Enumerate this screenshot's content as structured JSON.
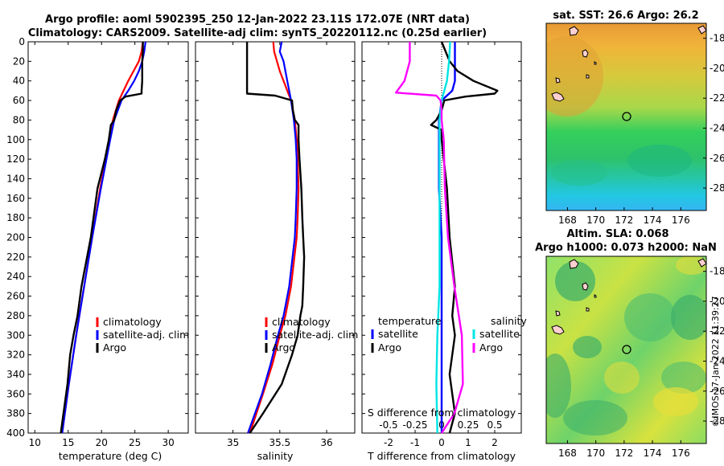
{
  "title_line1": "Argo profile: aoml 5902395_250 12-Jan-2022 23.11S 172.07E (NRT data)",
  "title_line2": "Climatology: CARS2009. Satellite-adj clim: synTS_20220112.nc (0.25d earlier)",
  "sst_title": "sat. SST: 26.6 Argo: 26.2",
  "sla_title1": "Altim. SLA: 0.068",
  "sla_title2": "Argo h1000: 0.073 h2000: NaN",
  "watermark": "©IMOS 17-Jan-2022 11:39:27",
  "colors": {
    "climatology": "#ff0000",
    "satellite": "#0000ff",
    "argo": "#000000",
    "sal_sat": "#00e5e5",
    "sal_argo": "#ff00ff"
  },
  "chart_data": [
    {
      "type": "line",
      "name": "temperature-profile",
      "xlabel": "temperature (deg C)",
      "xlim": [
        9,
        33
      ],
      "xticks": [
        "10",
        "15",
        "20",
        "25",
        "30"
      ],
      "ylim": [
        400,
        0
      ],
      "yticks": [
        "0",
        "20",
        "40",
        "60",
        "80",
        "100",
        "120",
        "140",
        "160",
        "180",
        "200",
        "220",
        "240",
        "260",
        "280",
        "300",
        "320",
        "340",
        "360",
        "380",
        "400"
      ],
      "legend": [
        "climatology",
        "satellite-adj. clim",
        "Argo"
      ],
      "series": [
        {
          "name": "climatology",
          "depth": [
            0,
            10,
            20,
            30,
            40,
            50,
            60,
            80,
            100,
            150,
            200,
            250,
            300,
            350,
            400
          ],
          "values": [
            26.2,
            26.0,
            25.6,
            24.8,
            24.0,
            23.3,
            22.6,
            21.7,
            21.2,
            19.8,
            18.6,
            17.4,
            16.2,
            15.1,
            14.1
          ]
        },
        {
          "name": "satellite-adj. clim",
          "depth": [
            0,
            10,
            20,
            30,
            40,
            50,
            60,
            80,
            100,
            150,
            200,
            250,
            300,
            350,
            400
          ],
          "values": [
            26.6,
            26.4,
            26.1,
            25.6,
            24.9,
            24.0,
            23.0,
            21.9,
            21.3,
            19.9,
            18.6,
            17.4,
            16.2,
            15.1,
            14.1
          ]
        },
        {
          "name": "Argo",
          "depth": [
            0,
            10,
            20,
            30,
            40,
            50,
            53,
            56,
            60,
            70,
            80,
            85,
            90,
            100,
            120,
            150,
            200,
            250,
            280,
            300,
            320,
            350,
            380,
            400
          ],
          "values": [
            26.2,
            26.2,
            26.1,
            26.1,
            26.1,
            26.0,
            26.0,
            23.6,
            22.8,
            22.2,
            21.9,
            21.4,
            21.3,
            21.1,
            20.5,
            19.4,
            18.4,
            17.0,
            16.4,
            15.8,
            15.3,
            14.9,
            14.3,
            13.9
          ]
        }
      ]
    },
    {
      "type": "line",
      "name": "salinity-profile",
      "xlabel": "salinity",
      "xticks": [
        "35",
        "35.5",
        "36"
      ],
      "xlim": [
        34.6,
        36.3
      ],
      "ylim": [
        400,
        0
      ],
      "legend": [
        "climatology",
        "satellite-adj. clim",
        "Argo"
      ],
      "series": [
        {
          "name": "climatology",
          "depth": [
            0,
            10,
            20,
            30,
            40,
            50,
            60,
            80,
            100,
            120,
            150,
            180,
            200,
            250,
            280,
            300,
            330,
            360,
            400
          ],
          "values": [
            35.43,
            35.44,
            35.47,
            35.5,
            35.54,
            35.58,
            35.62,
            35.66,
            35.68,
            35.69,
            35.7,
            35.69,
            35.68,
            35.62,
            35.56,
            35.5,
            35.42,
            35.32,
            35.18
          ]
        },
        {
          "name": "satellite-adj. clim",
          "depth": [
            0,
            10,
            20,
            30,
            40,
            50,
            60,
            80,
            100,
            120,
            150,
            180,
            200,
            250,
            280,
            300,
            330,
            360,
            400
          ],
          "values": [
            35.52,
            35.5,
            35.54,
            35.56,
            35.58,
            35.6,
            35.62,
            35.65,
            35.67,
            35.68,
            35.68,
            35.67,
            35.66,
            35.6,
            35.54,
            35.48,
            35.4,
            35.31,
            35.16
          ]
        },
        {
          "name": "Argo",
          "depth": [
            0,
            10,
            20,
            40,
            50,
            53,
            55,
            60,
            70,
            80,
            85,
            100,
            120,
            150,
            180,
            200,
            220,
            250,
            270,
            280,
            300,
            320,
            350,
            380,
            400
          ],
          "values": [
            35.15,
            35.15,
            35.15,
            35.15,
            35.15,
            35.15,
            35.45,
            35.63,
            35.64,
            35.66,
            35.7,
            35.7,
            35.71,
            35.73,
            35.74,
            35.75,
            35.76,
            35.75,
            35.74,
            35.72,
            35.69,
            35.63,
            35.52,
            35.32,
            35.18
          ]
        }
      ]
    },
    {
      "type": "line",
      "name": "difference-profile",
      "xlabel": "T difference from climatology",
      "xlabel_top": "S difference from climatology",
      "xticks": [
        "-2",
        "-1",
        "0",
        "1",
        "2"
      ],
      "xticks_top": [
        "-0.5",
        "-0.25",
        "0",
        "0.25",
        "0.5"
      ],
      "xlim": [
        -3,
        3
      ],
      "ylim": [
        400,
        0
      ],
      "legend_t_title": "temperature",
      "legend_s_title": "salinity",
      "legend_t": [
        "satellite",
        "Argo"
      ],
      "legend_s": [
        "satellite",
        "Argo"
      ],
      "series": [
        {
          "name": "T satellite",
          "depth": [
            0,
            20,
            40,
            50,
            55,
            60,
            80,
            100,
            150,
            200,
            250,
            300,
            350,
            400
          ],
          "values": [
            0.5,
            0.5,
            0.5,
            0.4,
            0.2,
            0.0,
            -0.1,
            -0.1,
            -0.1,
            0.0,
            0.0,
            0.0,
            0.0,
            0.0
          ]
        },
        {
          "name": "T Argo",
          "depth": [
            0,
            20,
            30,
            40,
            50,
            53,
            56,
            60,
            70,
            80,
            85,
            90,
            100,
            150,
            200,
            250,
            280,
            300,
            340,
            380,
            400
          ],
          "values": [
            0.0,
            0.3,
            0.6,
            1.2,
            2.1,
            2.0,
            0.9,
            0.1,
            0.0,
            -0.2,
            -0.4,
            0.0,
            0.0,
            0.2,
            0.3,
            0.5,
            0.4,
            0.5,
            0.3,
            0.5,
            0.3
          ]
        },
        {
          "name": "S satellite",
          "depth": [
            0,
            20,
            40,
            60,
            80,
            100,
            150,
            200,
            250,
            300,
            350,
            400
          ],
          "values": [
            0.08,
            0.07,
            0.05,
            0.0,
            -0.02,
            -0.02,
            -0.02,
            -0.02,
            -0.02,
            -0.04,
            -0.05,
            -0.04
          ]
        },
        {
          "name": "S Argo",
          "depth": [
            0,
            20,
            40,
            52,
            55,
            60,
            70,
            80,
            100,
            150,
            200,
            250,
            300,
            350,
            380,
            400
          ],
          "values": [
            -0.3,
            -0.3,
            -0.35,
            -0.43,
            -0.05,
            -0.01,
            0.0,
            0.0,
            0.02,
            0.03,
            0.06,
            0.12,
            0.19,
            0.2,
            0.12,
            0.0
          ]
        }
      ]
    },
    {
      "type": "heatmap",
      "name": "sst-map",
      "title": "sat. SST: 26.6 Argo: 26.2",
      "xticks": [
        "168",
        "170",
        "172",
        "174",
        "176"
      ],
      "yticks": [
        "-18",
        "-20",
        "-22",
        "-24",
        "-26",
        "-28"
      ],
      "xlim": [
        166.5,
        177.8
      ],
      "ylim": [
        -29.5,
        -17
      ],
      "argo_position": [
        172.07,
        -23.11
      ]
    },
    {
      "type": "heatmap",
      "name": "sla-map",
      "title": "Altim. SLA: 0.068 / Argo h1000: 0.073 h2000: NaN",
      "xticks": [
        "168",
        "170",
        "172",
        "174",
        "176"
      ],
      "yticks": [
        "-18",
        "-20",
        "-22",
        "-24",
        "-26",
        "-28"
      ],
      "xlim": [
        166.5,
        177.8
      ],
      "ylim": [
        -29.5,
        -17
      ],
      "argo_position": [
        172.07,
        -23.11
      ]
    }
  ]
}
